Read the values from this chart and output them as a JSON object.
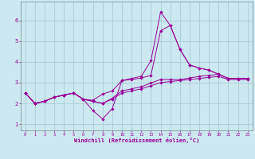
{
  "xlabel": "Windchill (Refroidissement éolien,°C)",
  "background_color": "#cce8f0",
  "grid_color": "#aaccd8",
  "line_color": "#990099",
  "x_data": [
    0,
    1,
    2,
    3,
    4,
    5,
    6,
    7,
    8,
    9,
    10,
    11,
    12,
    13,
    14,
    15,
    16,
    17,
    18,
    19,
    20,
    21,
    22,
    23
  ],
  "line1": [
    2.5,
    2.0,
    2.1,
    2.3,
    2.4,
    2.5,
    2.2,
    1.65,
    1.25,
    1.75,
    3.1,
    3.2,
    3.3,
    4.05,
    6.4,
    5.75,
    4.6,
    3.85,
    3.7,
    3.6,
    3.4,
    3.2,
    3.2,
    3.2
  ],
  "line2": [
    2.5,
    2.0,
    2.1,
    2.3,
    2.4,
    2.5,
    2.2,
    2.15,
    2.45,
    2.6,
    3.1,
    3.15,
    3.22,
    3.35,
    5.5,
    5.75,
    4.6,
    3.85,
    3.7,
    3.6,
    3.4,
    3.2,
    3.2,
    3.2
  ],
  "line3": [
    2.5,
    2.0,
    2.1,
    2.3,
    2.4,
    2.5,
    2.2,
    2.1,
    2.0,
    2.25,
    2.6,
    2.7,
    2.8,
    2.98,
    3.15,
    3.15,
    3.15,
    3.22,
    3.3,
    3.35,
    3.4,
    3.2,
    3.2,
    3.2
  ],
  "line4": [
    2.5,
    2.0,
    2.1,
    2.3,
    2.4,
    2.5,
    2.2,
    2.1,
    2.0,
    2.2,
    2.5,
    2.6,
    2.7,
    2.85,
    3.0,
    3.05,
    3.1,
    3.15,
    3.2,
    3.25,
    3.3,
    3.15,
    3.15,
    3.15
  ],
  "xlim": [
    -0.5,
    23.5
  ],
  "ylim": [
    0.7,
    6.9
  ],
  "yticks": [
    1,
    2,
    3,
    4,
    5,
    6
  ],
  "xticks": [
    0,
    1,
    2,
    3,
    4,
    5,
    6,
    7,
    8,
    9,
    10,
    11,
    12,
    13,
    14,
    15,
    16,
    17,
    18,
    19,
    20,
    21,
    22,
    23
  ]
}
